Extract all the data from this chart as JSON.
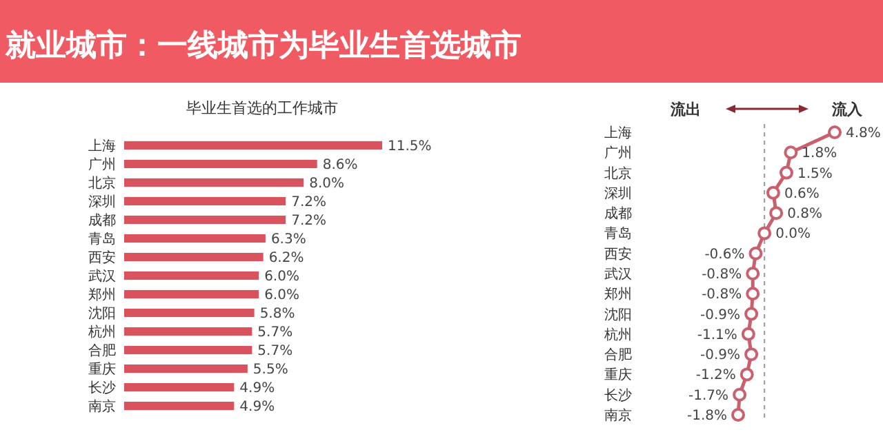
{
  "chart_data": [
    {
      "type": "bar",
      "orientation": "horizontal",
      "title": "就业城市：一线城市为毕业生首选城市",
      "subtitle": "毕业生首选的工作城市",
      "categories": [
        "上海",
        "广州",
        "北京",
        "深圳",
        "成都",
        "青岛",
        "西安",
        "武汉",
        "郑州",
        "沈阳",
        "杭州",
        "合肥",
        "重庆",
        "长沙",
        "南京"
      ],
      "values": [
        11.5,
        8.6,
        8.0,
        7.2,
        7.2,
        6.3,
        6.2,
        6.0,
        6.0,
        5.8,
        5.7,
        5.7,
        5.5,
        4.9,
        4.9
      ],
      "value_labels": [
        "11.5%",
        "8.6%",
        "8.0%",
        "7.2%",
        "7.2%",
        "6.3%",
        "6.2%",
        "6.0%",
        "6.0%",
        "5.8%",
        "5.7%",
        "5.7%",
        "5.5%",
        "4.9%",
        "4.9%"
      ],
      "color": "#d9535e"
    },
    {
      "type": "line",
      "orientation": "horizontal",
      "categories": [
        "上海",
        "广州",
        "北京",
        "深圳",
        "成都",
        "青岛",
        "西安",
        "武汉",
        "郑州",
        "沈阳",
        "杭州",
        "合肥",
        "重庆",
        "长沙",
        "南京"
      ],
      "values": [
        4.8,
        1.8,
        1.5,
        0.6,
        0.8,
        0.0,
        -0.6,
        -0.8,
        -0.8,
        -0.9,
        -1.1,
        -0.9,
        -1.2,
        -1.7,
        -1.8
      ],
      "value_labels": [
        "4.8%",
        "1.8%",
        "1.5%",
        "0.6%",
        "0.8%",
        "0.0%",
        "-0.6%",
        "-0.8%",
        "-0.8%",
        "-0.9%",
        "-1.1%",
        "-0.9%",
        "-1.2%",
        "-1.7%",
        "-1.8%"
      ],
      "color": "#c9606e",
      "marker": "circle",
      "annotations": [
        "流出",
        "流入"
      ],
      "ref_lines": [
        {
          "axis": "x",
          "value": 0,
          "line_style": "dashed",
          "color": "#999999"
        }
      ]
    }
  ]
}
